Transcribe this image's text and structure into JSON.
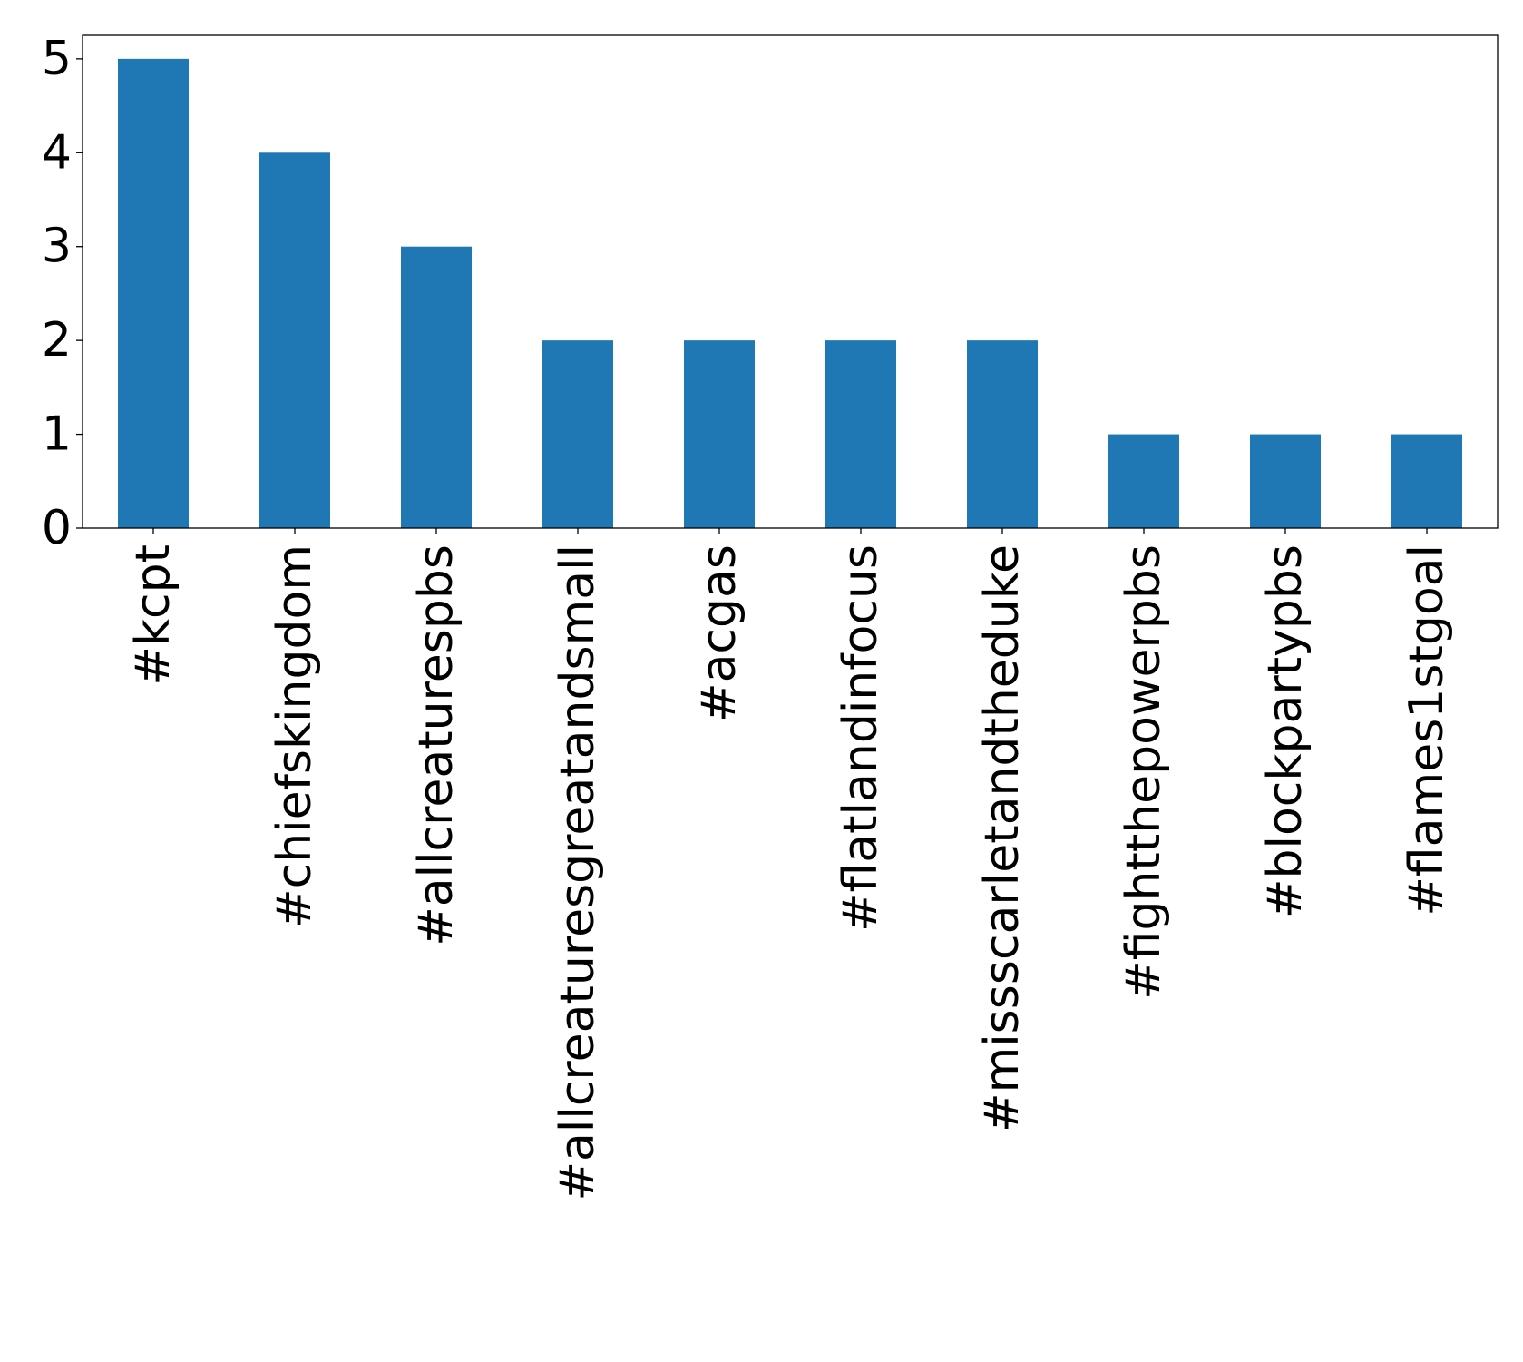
{
  "chart_data": {
    "type": "bar",
    "categories": [
      "#kcpt",
      "#chiefskingdom",
      "#allcreaturespbs",
      "#allcreaturesgreatandsmall",
      "#acgas",
      "#flatlandinfocus",
      "#missscarletandtheduke",
      "#fightthepowerpbs",
      "#blockpartypbs",
      "#flames1stgoal"
    ],
    "values": [
      5,
      4,
      3,
      2,
      2,
      2,
      2,
      1,
      1,
      1
    ],
    "yticks": [
      "0",
      "1",
      "2",
      "3",
      "4",
      "5"
    ],
    "ylim": [
      0,
      5.25
    ],
    "title": "",
    "xlabel": "",
    "ylabel": "",
    "grid": false,
    "legend": "none",
    "bar_color": "#1f77b4"
  }
}
